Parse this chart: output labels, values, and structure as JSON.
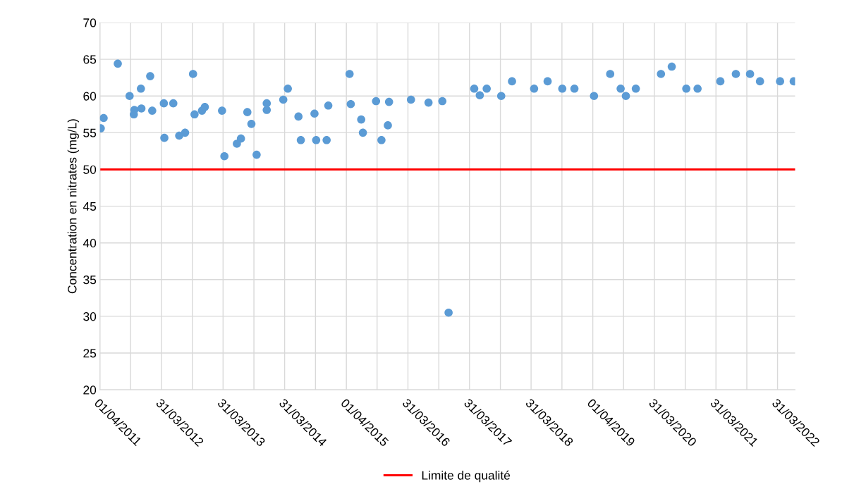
{
  "chart_data": {
    "type": "scatter",
    "ylabel": "Concentration en nitrates (mg/L)",
    "x": [
      "2011-04-06",
      "2011-04-23",
      "2011-07-16",
      "2011-09-24",
      "2011-10-22",
      "2011-10-19",
      "2011-11-30",
      "2011-12-03",
      "2012-01-24",
      "2012-02-05",
      "2012-04-14",
      "2012-04-17",
      "2012-06-09",
      "2012-07-14",
      "2012-08-18",
      "2012-10-04",
      "2012-10-13",
      "2012-11-26",
      "2012-12-13",
      "2013-03-25",
      "2013-04-08",
      "2013-06-21",
      "2013-07-15",
      "2013-08-22",
      "2013-09-15",
      "2013-10-16",
      "2013-12-15",
      "2013-12-15",
      "2014-03-23",
      "2014-04-19",
      "2014-06-21",
      "2014-07-05",
      "2014-09-24",
      "2014-10-04",
      "2014-12-15",
      "2014-12-05",
      "2015-04-20",
      "2015-04-27",
      "2015-06-28",
      "2015-07-08",
      "2015-09-24",
      "2015-10-26",
      "2015-12-03",
      "2015-12-10",
      "2016-04-18",
      "2016-07-31",
      "2016-10-21",
      "2016-11-27",
      "2017-04-28",
      "2017-05-31",
      "2017-07-11",
      "2017-10-05",
      "2017-12-08",
      "2018-04-18",
      "2018-07-07",
      "2018-10-02",
      "2018-12-13",
      "2019-04-08",
      "2019-07-13",
      "2019-09-13",
      "2019-10-14",
      "2019-12-12",
      "2020-05-09",
      "2020-07-12",
      "2020-10-06",
      "2020-12-12",
      "2021-04-26",
      "2021-07-27",
      "2021-10-19",
      "2021-12-17",
      "2022-04-15",
      "2022-07-05"
    ],
    "series": [
      {
        "color": "#5b9bd5",
        "values": [
          55.6,
          57,
          64.4,
          60,
          58.1,
          57.5,
          61,
          58.3,
          62.7,
          58,
          59,
          54.3,
          59,
          54.6,
          55,
          63,
          57.5,
          58,
          58.5,
          58,
          51.8,
          53.5,
          54.2,
          57.8,
          56.2,
          52,
          59,
          58.1,
          59.5,
          61,
          57.2,
          54,
          57.6,
          54,
          58.7,
          54,
          63,
          58.9,
          56.8,
          55,
          59.3,
          54,
          56,
          59.2,
          59.5,
          59.1,
          59.3,
          30.5,
          61,
          60.1,
          61,
          60,
          62,
          61,
          62,
          61,
          61,
          60,
          63,
          61,
          60,
          61,
          63,
          64,
          61,
          61,
          62,
          63,
          63,
          62,
          62,
          62
        ]
      }
    ],
    "marker": "circle",
    "xlim": [
      "2011-04-01",
      "2022-07-13"
    ],
    "xticks": [
      {
        "value": "2011-04-01",
        "label": "01/04/2011"
      },
      {
        "value": "2011-09-30",
        "label": null
      },
      {
        "value": "2012-03-31",
        "label": "31/03/2012"
      },
      {
        "value": "2012-09-30",
        "label": null
      },
      {
        "value": "2013-03-31",
        "label": "31/03/2013"
      },
      {
        "value": "2013-09-30",
        "label": null
      },
      {
        "value": "2014-03-31",
        "label": "31/03/2014"
      },
      {
        "value": "2014-09-30",
        "label": null
      },
      {
        "value": "2015-04-01",
        "label": "01/04/2015"
      },
      {
        "value": "2015-09-30",
        "label": null
      },
      {
        "value": "2016-03-31",
        "label": "31/03/2016"
      },
      {
        "value": "2016-09-30",
        "label": null
      },
      {
        "value": "2017-03-31",
        "label": "31/03/2017"
      },
      {
        "value": "2017-09-30",
        "label": null
      },
      {
        "value": "2018-03-31",
        "label": "31/03/2018"
      },
      {
        "value": "2018-09-30",
        "label": null
      },
      {
        "value": "2019-04-01",
        "label": "01/04/2019"
      },
      {
        "value": "2019-09-30",
        "label": null
      },
      {
        "value": "2020-03-31",
        "label": "31/03/2020"
      },
      {
        "value": "2020-09-30",
        "label": null
      },
      {
        "value": "2021-03-31",
        "label": "31/03/2021"
      },
      {
        "value": "2021-09-30",
        "label": null
      },
      {
        "value": "2022-03-31",
        "label": "31/03/2022"
      }
    ],
    "ylim": [
      20,
      70
    ],
    "yticks": [
      20,
      25,
      30,
      35,
      40,
      45,
      50,
      55,
      60,
      65,
      70
    ],
    "ref_lines": [
      {
        "axis": "y",
        "value": 50,
        "label": "Limite de qualité",
        "color": "#ff0000",
        "line_style": "solid"
      }
    ],
    "grid": true,
    "legend": "bottom"
  }
}
